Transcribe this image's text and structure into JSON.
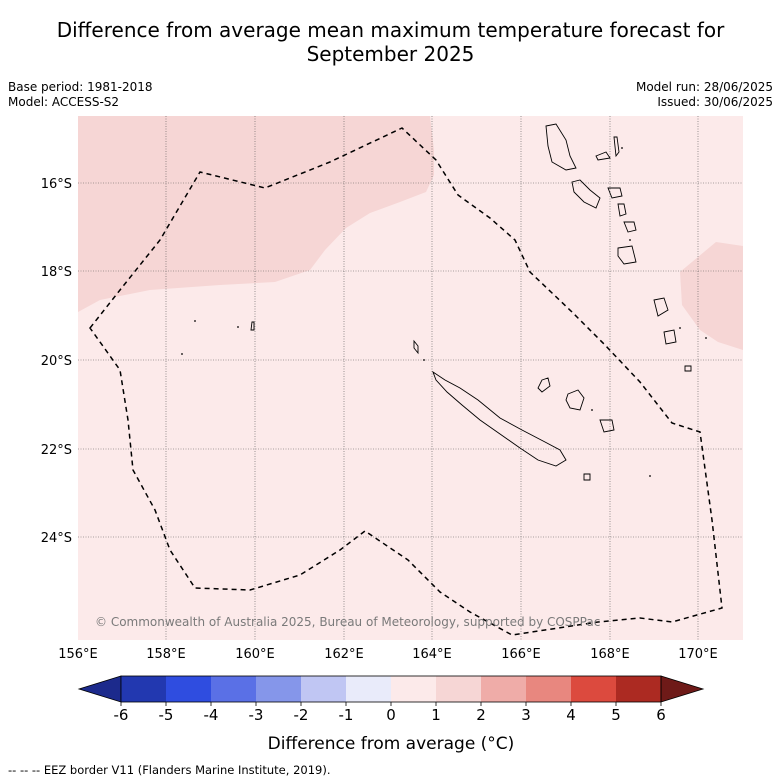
{
  "title": {
    "line1": "Difference from average mean maximum temperature forecast for",
    "line2": "September 2025"
  },
  "meta": {
    "base_period": "Base period: 1981-2018",
    "model": "Model: ACCESS-S2",
    "model_run": "Model run: 28/06/2025",
    "issued": "Issued: 30/06/2025"
  },
  "map": {
    "lat_labels": [
      "16°S",
      "18°S",
      "20°S",
      "22°S",
      "24°S"
    ],
    "lon_labels": [
      "156°E",
      "158°E",
      "160°E",
      "162°E",
      "164°E",
      "166°E",
      "168°E",
      "170°E"
    ],
    "copyright": "© Commonwealth of Australia 2025, Bureau of Meteorology, supported by COSPPac",
    "colors": {
      "background_anomaly_0_1": "#fceaea",
      "anomaly_1_2": "#f6d6d5",
      "land_outline": "#000000",
      "grid": "#555555"
    }
  },
  "colorbar": {
    "ticks": [
      "-6",
      "-5",
      "-4",
      "-3",
      "-2",
      "-1",
      "0",
      "1",
      "2",
      "3",
      "4",
      "5",
      "6"
    ],
    "colors": [
      "#1c2a8c",
      "#2238b0",
      "#2f4de0",
      "#5a70e6",
      "#8596ea",
      "#c0c6f3",
      "#e9ebfa",
      "#fceaea",
      "#f6d6d5",
      "#efaca8",
      "#e8877f",
      "#dc4a3e",
      "#ac2a22",
      "#6e1a18"
    ],
    "label": "Difference from average (°C)"
  },
  "legend": {
    "eez": "--  --  -- EEZ border V11 (Flanders Marine Institute, 2019)."
  }
}
